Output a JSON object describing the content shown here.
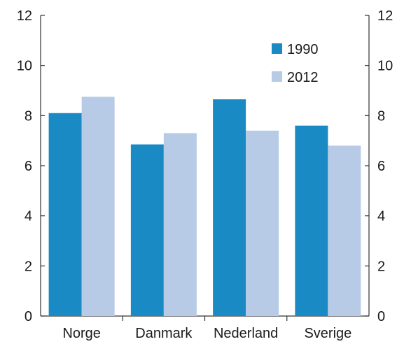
{
  "chart_data": {
    "type": "bar",
    "categories": [
      "Norge",
      "Danmark",
      "Nederland",
      "Sverige"
    ],
    "series": [
      {
        "name": "1990",
        "values": [
          8.1,
          6.85,
          8.65,
          7.6
        ]
      },
      {
        "name": "2012",
        "values": [
          8.75,
          7.3,
          7.4,
          6.8
        ]
      }
    ],
    "ylim": [
      0,
      12
    ],
    "yticks": [
      "0",
      "2",
      "4",
      "6",
      "8",
      "10",
      "12"
    ],
    "title": "",
    "xlabel": "",
    "ylabel": "",
    "grid": false,
    "legend_position": "top-right",
    "colors": {
      "1990": "#1a8ac4",
      "2012": "#b8cbe6"
    }
  }
}
